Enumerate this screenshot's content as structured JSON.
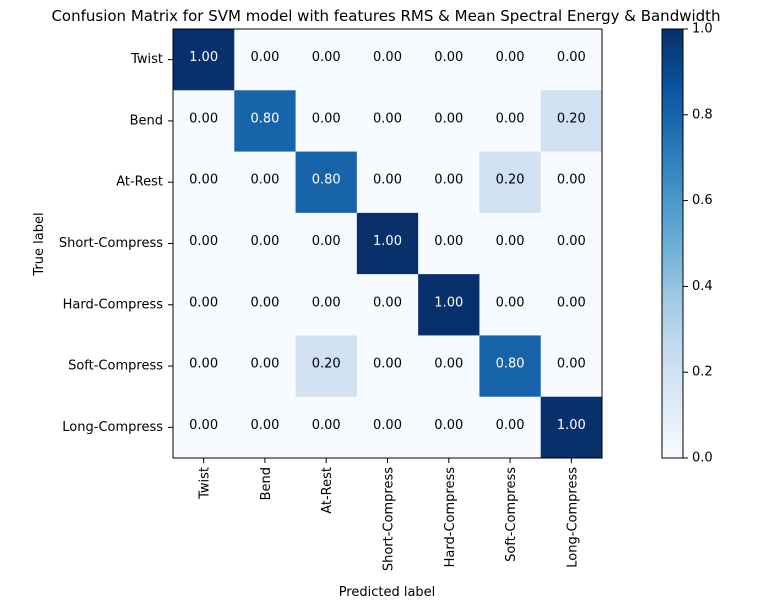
{
  "chart_data": {
    "type": "heatmap",
    "title": "Confusion Matrix for SVM model with features RMS & Mean Spectral Energy & Bandwidth",
    "xlabel": "Predicted label",
    "ylabel": "True label",
    "x_categories": [
      "Twist",
      "Bend",
      "At-Rest",
      "Short-Compress",
      "Hard-Compress",
      "Soft-Compress",
      "Long-Compress"
    ],
    "y_categories": [
      "Twist",
      "Bend",
      "At-Rest",
      "Short-Compress",
      "Hard-Compress",
      "Soft-Compress",
      "Long-Compress"
    ],
    "values": [
      [
        1.0,
        0.0,
        0.0,
        0.0,
        0.0,
        0.0,
        0.0
      ],
      [
        0.0,
        0.8,
        0.0,
        0.0,
        0.0,
        0.0,
        0.2
      ],
      [
        0.0,
        0.0,
        0.8,
        0.0,
        0.0,
        0.2,
        0.0
      ],
      [
        0.0,
        0.0,
        0.0,
        1.0,
        0.0,
        0.0,
        0.0
      ],
      [
        0.0,
        0.0,
        0.0,
        0.0,
        1.0,
        0.0,
        0.0
      ],
      [
        0.0,
        0.0,
        0.2,
        0.0,
        0.0,
        0.8,
        0.0
      ],
      [
        0.0,
        0.0,
        0.0,
        0.0,
        0.0,
        0.0,
        1.0
      ]
    ],
    "colormap": "Blues",
    "colorbar": {
      "range": [
        0.0,
        1.0
      ],
      "ticks": [
        0.0,
        0.2,
        0.4,
        0.6,
        0.8,
        1.0
      ],
      "tick_labels": [
        "0.0",
        "0.2",
        "0.4",
        "0.6",
        "0.8",
        "1.0"
      ]
    },
    "value_format": "2 decimals",
    "grid": false
  }
}
